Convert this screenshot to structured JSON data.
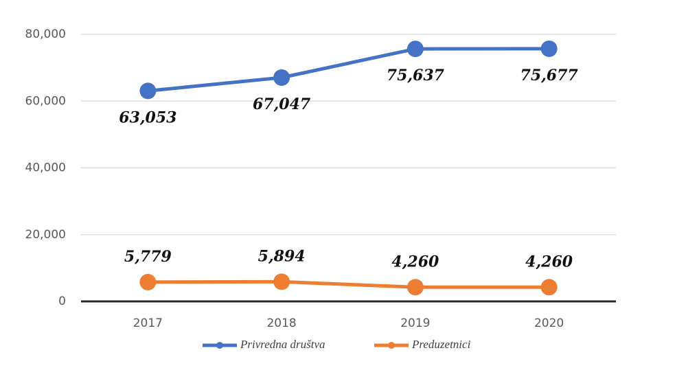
{
  "chart_data": {
    "type": "line",
    "categories": [
      "2017",
      "2018",
      "2019",
      "2020"
    ],
    "series": [
      {
        "name": "Privredna društva",
        "color": "#4472c4",
        "values": [
          63053,
          67047,
          75637,
          75677
        ],
        "value_labels": [
          "63,053",
          "67,047",
          "75,637",
          "75,677"
        ]
      },
      {
        "name": "Preduzetnici",
        "color": "#ed7d31",
        "values": [
          5779,
          5894,
          4260,
          4260
        ],
        "value_labels": [
          "5,779",
          "5,894",
          "4,260",
          "4,260"
        ]
      }
    ],
    "ylim": [
      0,
      80000
    ],
    "yticks": [
      0,
      {
        "value": 20000,
        "label": "20,000"
      },
      {
        "value": 40000,
        "label": "40,000"
      },
      {
        "value": 60000,
        "label": "60,000"
      },
      {
        "value": 80000,
        "label": "80,000"
      }
    ],
    "grid": true,
    "legend": "bottom"
  }
}
